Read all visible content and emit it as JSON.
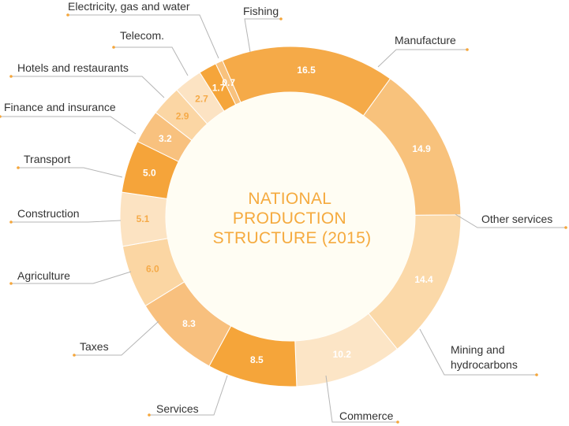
{
  "chart_data": {
    "type": "pie",
    "style": "donut",
    "title": [
      "NATIONAL",
      "PRODUCTION",
      "STRUCTURE (2015)"
    ],
    "categories": [
      "Manufacture",
      "Other services",
      "Mining and hydrocarbons",
      "Commerce",
      "Services",
      "Taxes",
      "Agriculture",
      "Construction",
      "Transport",
      "Finance and insurance",
      "Hotels and restaurants",
      "Telecom.",
      "Electricity, gas and water",
      "Fishing"
    ],
    "values": [
      16.5,
      14.9,
      14.4,
      10.2,
      8.5,
      8.3,
      6.0,
      5.1,
      5.0,
      3.2,
      2.9,
      2.7,
      1.7,
      0.7
    ],
    "value_labels": [
      "16.5",
      "14.9",
      "14.4",
      "10.2",
      "8.5",
      "8.3",
      "6.0",
      "5.1",
      "5.0",
      "3.2",
      "2.9",
      "2.7",
      "1.7",
      "0.7"
    ],
    "colors": [
      "#F5AA48",
      "#F8C27C",
      "#FBD9A9",
      "#FCE5C6",
      "#F5A53A",
      "#F8C07E",
      "#FBD6A3",
      "#FCE3C2",
      "#F5A43A",
      "#F8C17E",
      "#FBD6A4",
      "#FCE3C3",
      "#F5A53A",
      "#F8C27E"
    ],
    "label_colors": [
      "#FFFFFF",
      "#FFFFFF",
      "#FFFFFF",
      "#FFFFFF",
      "#FFFFFF",
      "#FFFFFF",
      "#F5AA48",
      "#F5AA48",
      "#FFFFFF",
      "#FFFFFF",
      "#F5AA48",
      "#F5AA48",
      "#FFFFFF",
      "#FFFFFF"
    ],
    "center_color": "#FFFDF3",
    "accent_color": "#F5A63A"
  }
}
